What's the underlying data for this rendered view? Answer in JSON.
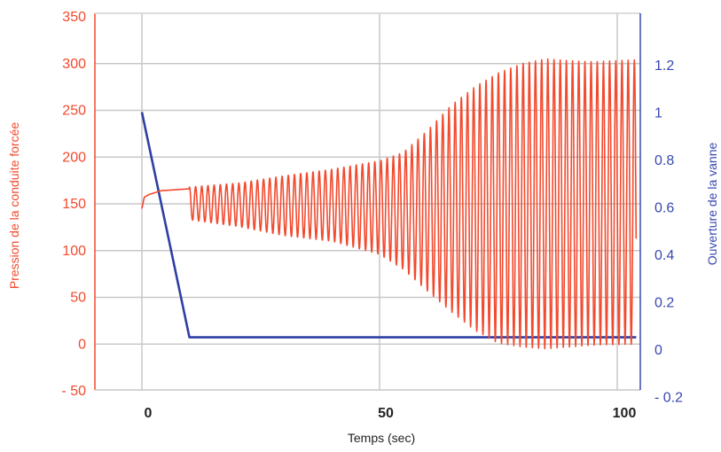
{
  "chart_data": {
    "type": "line",
    "xlabel": "Temps (sec)",
    "ylabel_left": "Pression de la conduite forcée",
    "ylabel_right": "Ouverture de la vanne",
    "xlim": [
      -10,
      105
    ],
    "ylim_left": [
      -50,
      350
    ],
    "ylim_right": [
      -0.2,
      1.35
    ],
    "x_ticks": [
      0,
      50,
      100
    ],
    "x_tick_labels": [
      "0",
      "50",
      "100"
    ],
    "y_left_ticks": [
      -50,
      0,
      50,
      100,
      150,
      200,
      250,
      300,
      350
    ],
    "y_left_tick_labels": [
      "- 50",
      "0",
      "50",
      "100",
      "150",
      "200",
      "250",
      "300",
      "350"
    ],
    "y_right_ticks": [
      -0.2,
      0,
      0.2,
      0.4,
      0.6,
      0.8,
      1,
      1.2
    ],
    "y_right_tick_labels": [
      "- 0.2",
      "0",
      "0.2",
      "0.4",
      "0.6",
      "0.8",
      "1",
      "1.2"
    ],
    "grid": true,
    "series": [
      {
        "axis": "right",
        "color": "#2e3fa3",
        "x": [
          0,
          10,
          104
        ],
        "y": [
          1.0,
          0.05,
          0.05
        ]
      },
      {
        "axis": "left",
        "color": "#f24a2e",
        "style": "oscillating",
        "initial_x": [
          0,
          0.5,
          1.5,
          4,
          10
        ],
        "initial_y": [
          145,
          157,
          160,
          164,
          166
        ],
        "oscillation_start": 10,
        "oscillation_end": 104,
        "period": 1.3,
        "envelope_x": [
          10,
          20,
          30,
          40,
          50,
          55,
          60,
          65,
          70,
          75,
          80,
          85,
          90,
          95,
          104
        ],
        "envelope_max": [
          168,
          172,
          180,
          187,
          196,
          205,
          228,
          255,
          275,
          290,
          300,
          305,
          303,
          302,
          304
        ],
        "envelope_min": [
          133,
          126,
          116,
          110,
          96,
          80,
          57,
          35,
          15,
          1,
          -3,
          -5,
          -3,
          -1,
          0
        ]
      }
    ]
  }
}
